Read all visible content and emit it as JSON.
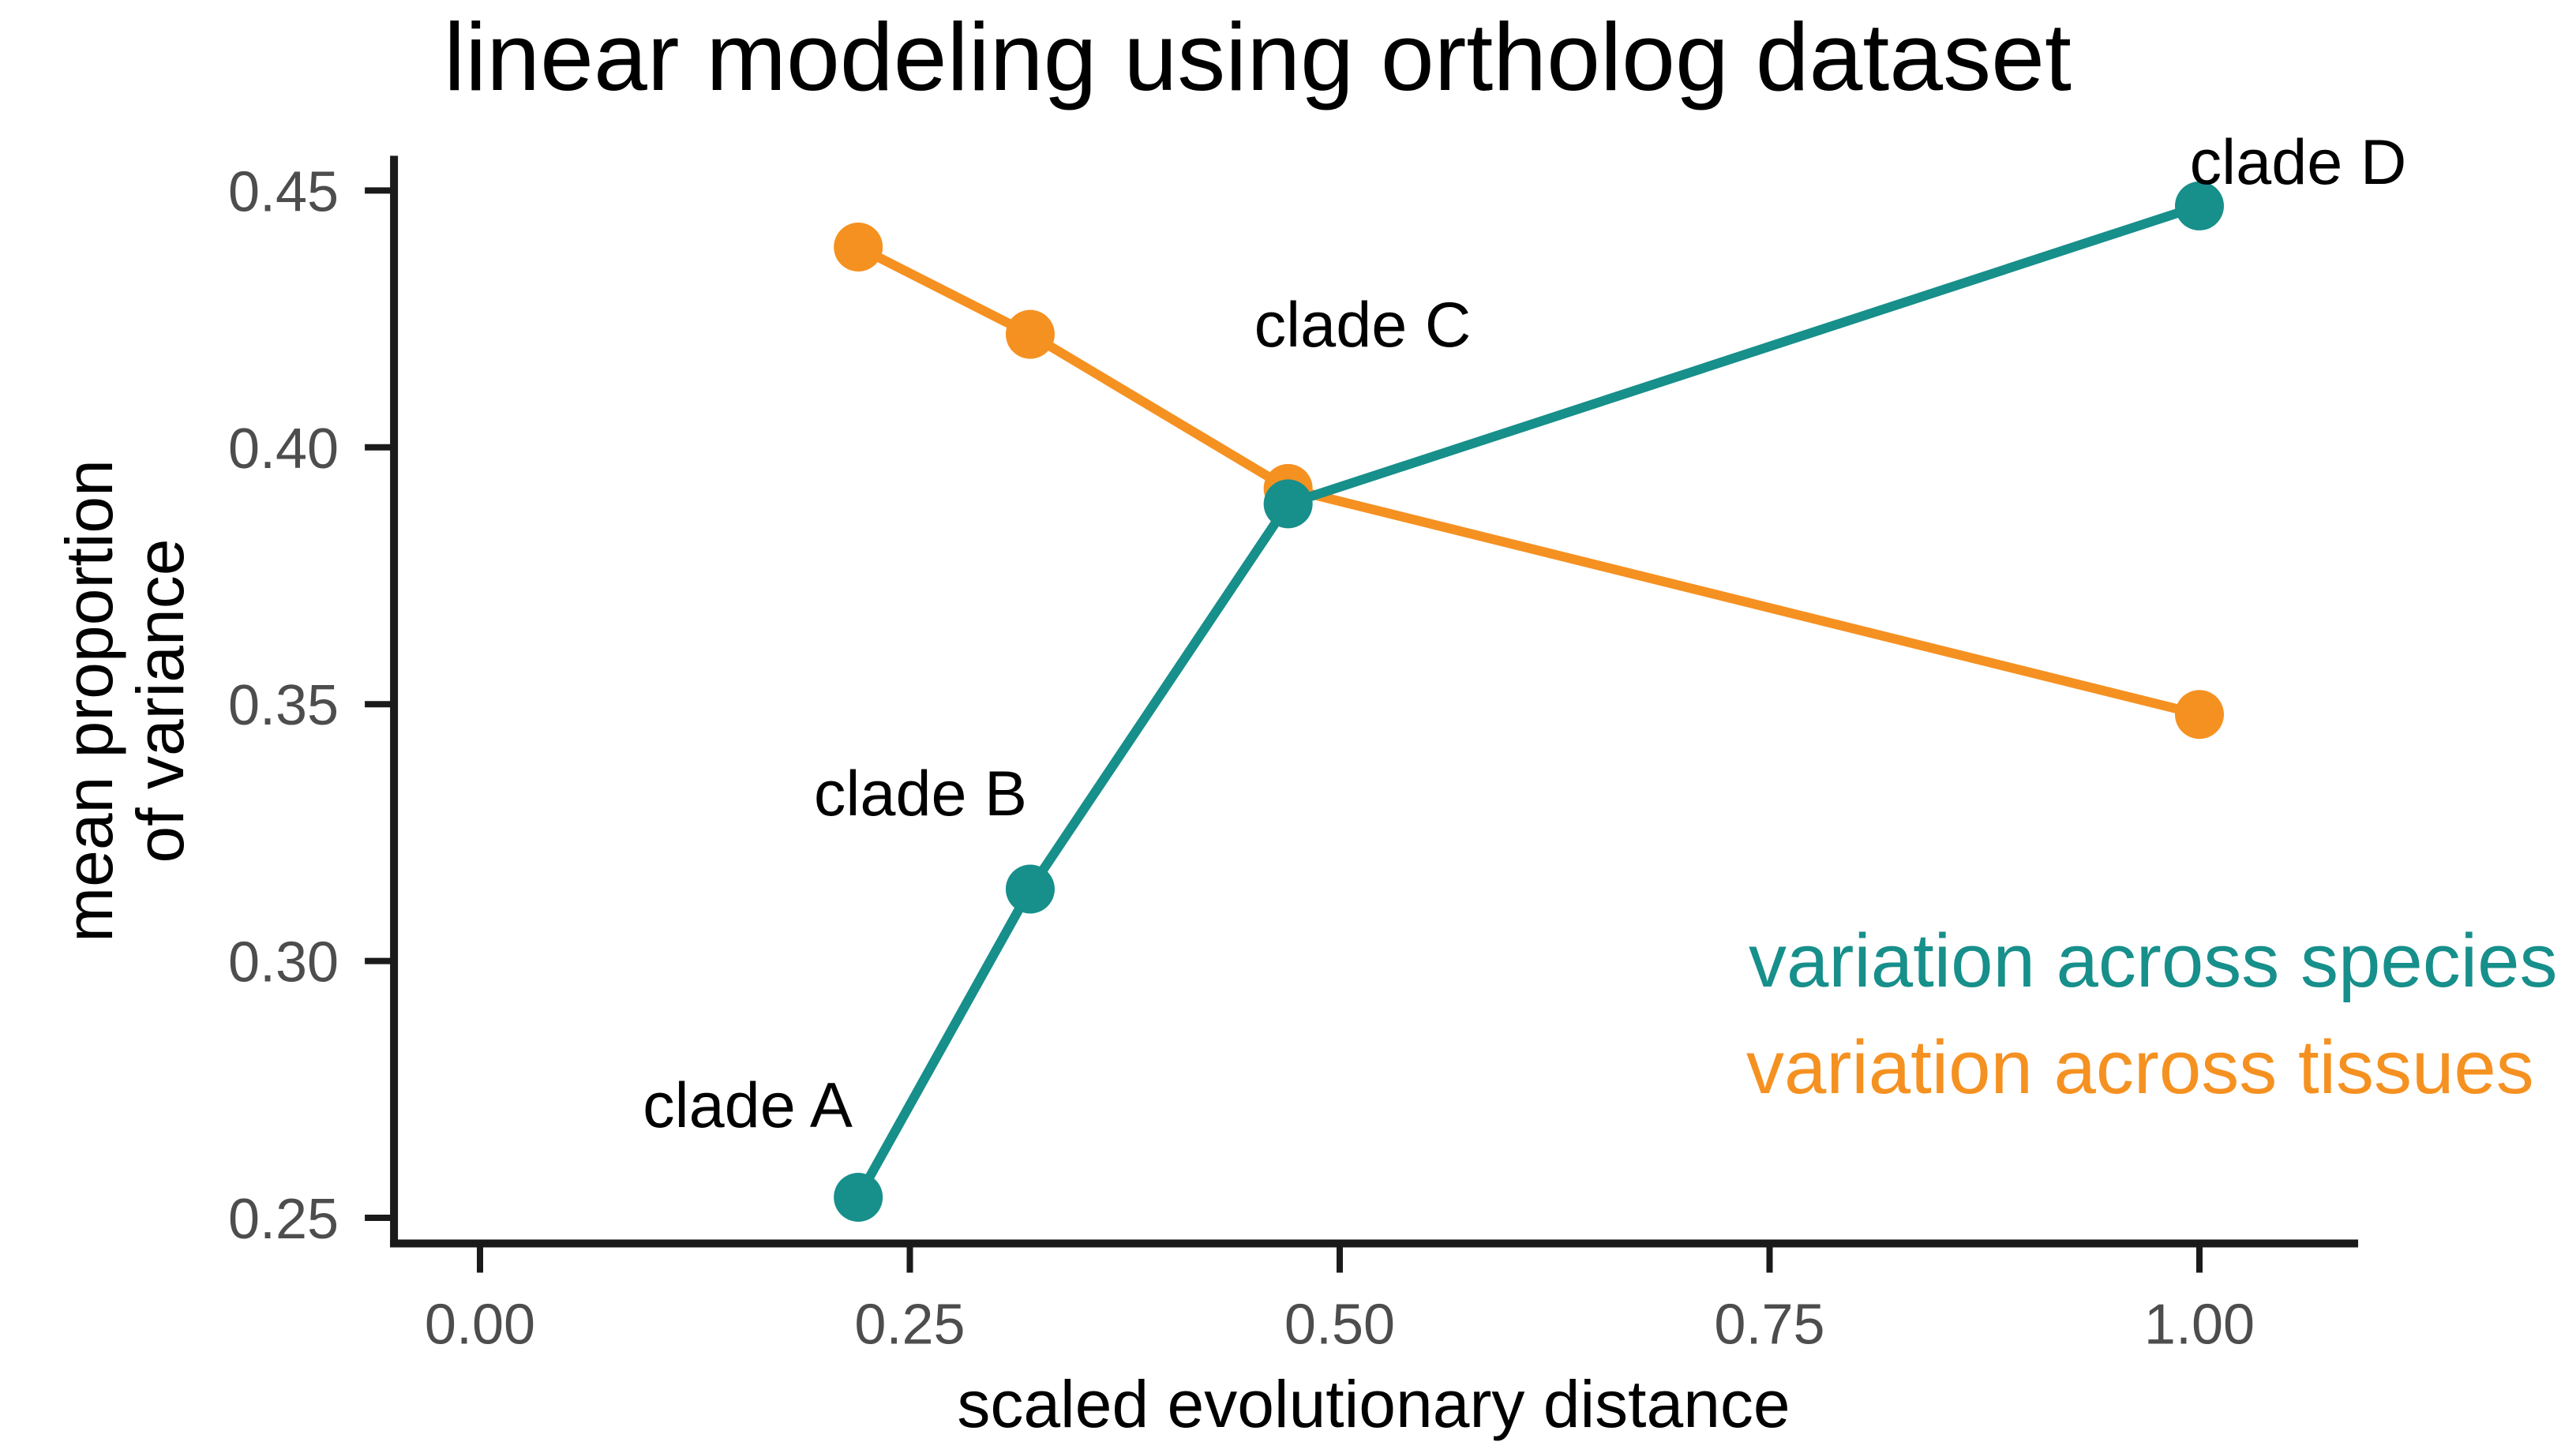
{
  "chart_data": {
    "type": "line",
    "title": "linear modeling using ortholog dataset",
    "xlabel": "scaled evolutionary distance",
    "ylabel": [
      "mean proportion",
      "of variance"
    ],
    "xlim": [
      -0.05,
      1.09
    ],
    "ylim": [
      0.245,
      0.456
    ],
    "xticks": {
      "values": [
        0,
        0.25,
        0.5,
        0.75,
        1.0
      ],
      "labels": [
        "0.00",
        "0.25",
        "0.50",
        "0.75",
        "1.00"
      ]
    },
    "yticks": {
      "values": [
        0.25,
        0.3,
        0.35,
        0.4,
        0.45
      ],
      "labels": [
        "0.25",
        "0.30",
        "0.35",
        "0.40",
        "0.45"
      ]
    },
    "grid": false,
    "series": [
      {
        "name": "variation across species",
        "color": "#178f8b",
        "x": [
          0.22,
          0.32,
          0.47,
          1.0
        ],
        "y": [
          0.254,
          0.314,
          0.389,
          0.447
        ]
      },
      {
        "name": "variation across tissues",
        "color": "#f59121",
        "x": [
          0.22,
          0.32,
          0.47,
          1.0
        ],
        "y": [
          0.439,
          0.422,
          0.392,
          0.348
        ]
      }
    ],
    "annotations": [
      {
        "text": "clade A",
        "x": 0.22
      },
      {
        "text": "clade B",
        "x": 0.32
      },
      {
        "text": "clade C",
        "x": 0.47
      },
      {
        "text": "clade D",
        "x": 1.0
      }
    ],
    "legend": {
      "position": "bottom-right"
    },
    "colors": {
      "axis": "#1a1a1a",
      "tick_label": "#4d4d4d",
      "text": "#000000",
      "background": "#ffffff"
    }
  }
}
